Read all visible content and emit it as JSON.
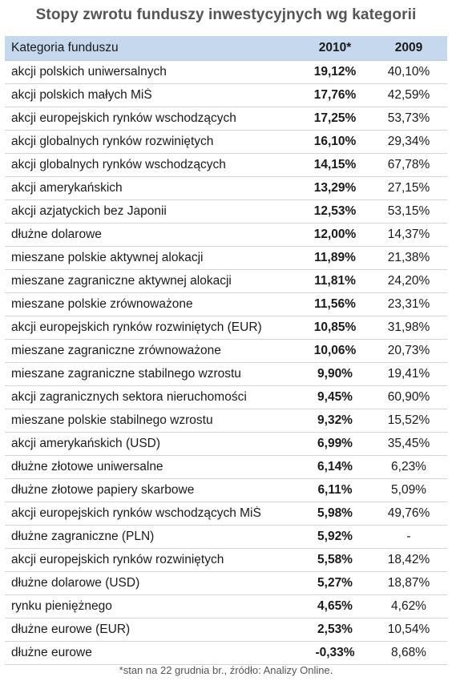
{
  "chart_data": {
    "type": "table",
    "title": "Stopy zwrotu funduszy inwestycyjnych wg kategorii",
    "columns": [
      "Kategoria funduszu",
      "2010*",
      "2009"
    ],
    "rows": [
      {
        "category": "akcji polskich uniwersalnych",
        "y2010": "19,12%",
        "y2009": "40,10%"
      },
      {
        "category": "akcji polskich małych MiŚ",
        "y2010": "17,76%",
        "y2009": "42,59%"
      },
      {
        "category": "akcji europejskich rynków wschodzących",
        "y2010": "17,25%",
        "y2009": "53,73%"
      },
      {
        "category": "akcji globalnych rynków rozwiniętych",
        "y2010": "16,10%",
        "y2009": "29,34%"
      },
      {
        "category": "akcji globalnych rynków wschodzących",
        "y2010": "14,15%",
        "y2009": "67,78%"
      },
      {
        "category": "akcji amerykańskich",
        "y2010": "13,29%",
        "y2009": "27,15%"
      },
      {
        "category": "akcji azjatyckich bez Japonii",
        "y2010": "12,53%",
        "y2009": "53,15%"
      },
      {
        "category": "dłużne dolarowe",
        "y2010": "12,00%",
        "y2009": "14,37%"
      },
      {
        "category": "mieszane polskie aktywnej alokacji",
        "y2010": "11,89%",
        "y2009": "21,38%"
      },
      {
        "category": "mieszane zagraniczne aktywnej alokacji",
        "y2010": "11,81%",
        "y2009": "24,20%"
      },
      {
        "category": "mieszane polskie zrównoważone",
        "y2010": "11,56%",
        "y2009": "23,31%"
      },
      {
        "category": "akcji europejskich rynków rozwiniętych (EUR)",
        "y2010": "10,85%",
        "y2009": "31,98%"
      },
      {
        "category": "mieszane zagraniczne zrównoważone",
        "y2010": "10,06%",
        "y2009": "20,73%"
      },
      {
        "category": "mieszane zagraniczne stabilnego wzrostu",
        "y2010": "9,90%",
        "y2009": "19,41%"
      },
      {
        "category": "akcji zagranicznych sektora nieruchomości",
        "y2010": "9,45%",
        "y2009": "60,90%"
      },
      {
        "category": "mieszane polskie stabilnego wzrostu",
        "y2010": "9,32%",
        "y2009": "15,52%"
      },
      {
        "category": "akcji amerykańskich (USD)",
        "y2010": "6,99%",
        "y2009": "35,45%"
      },
      {
        "category": "dłużne złotowe uniwersalne",
        "y2010": "6,14%",
        "y2009": "6,23%"
      },
      {
        "category": "dłużne złotowe papiery skarbowe",
        "y2010": "6,11%",
        "y2009": "5,09%"
      },
      {
        "category": "akcji europejskich rynków wschodzących MiŚ",
        "y2010": "5,98%",
        "y2009": "49,76%"
      },
      {
        "category": "dłużne zagraniczne (PLN)",
        "y2010": "5,92%",
        "y2009": "-"
      },
      {
        "category": "akcji europejskich rynków rozwiniętych",
        "y2010": "5,58%",
        "y2009": "18,42%"
      },
      {
        "category": "dłużne dolarowe (USD)",
        "y2010": "5,27%",
        "y2009": "18,87%"
      },
      {
        "category": "rynku pieniężnego",
        "y2010": "4,65%",
        "y2009": "4,62%"
      },
      {
        "category": "dłużne eurowe (EUR)",
        "y2010": "2,53%",
        "y2009": "10,54%"
      },
      {
        "category": "dłużne eurowe",
        "y2010": "-0,33%",
        "y2009": "8,68%"
      }
    ],
    "footnote": "*stan na 22 grudnia br., źródło: Analizy Online."
  },
  "colors": {
    "header_bg": "#c5d8ee",
    "title": "#555555",
    "row_divider": "#d4d4d4"
  }
}
